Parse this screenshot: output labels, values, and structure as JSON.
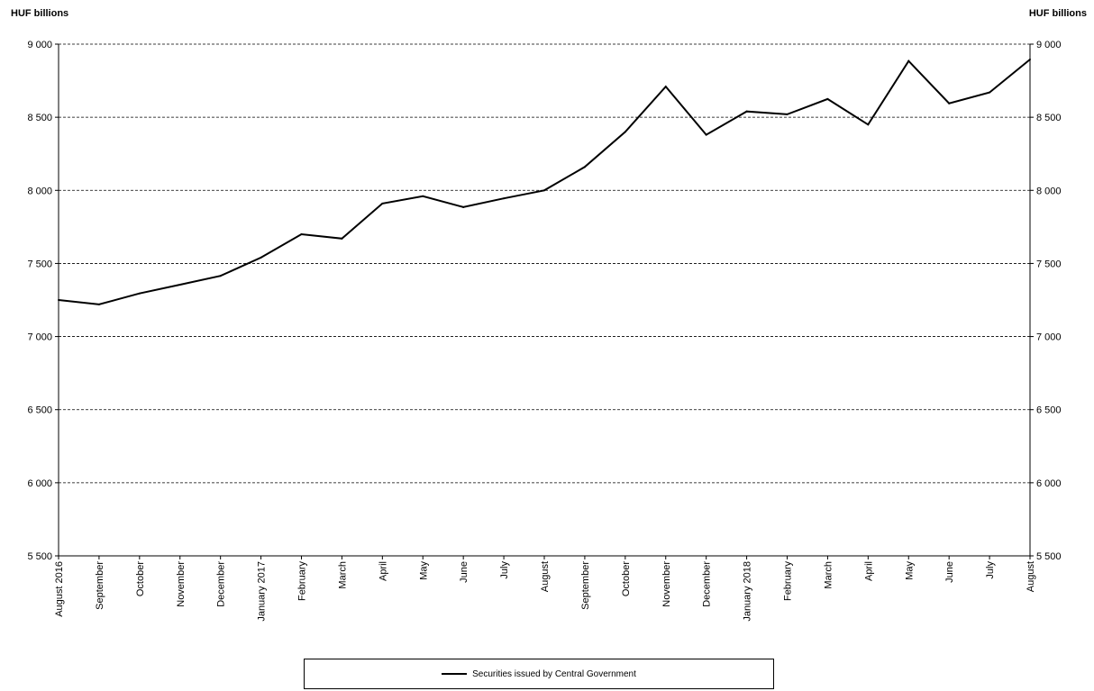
{
  "chart_data": {
    "type": "line",
    "y_unit_left": "HUF billions",
    "y_unit_right": "HUF billions",
    "ylim": [
      5500,
      9000
    ],
    "y_ticks": [
      5500,
      6000,
      6500,
      7000,
      7500,
      8000,
      8500,
      9000
    ],
    "y_tick_labels": [
      "5 500",
      "6 000",
      "6 500",
      "7 000",
      "7 500",
      "8 000",
      "8 500",
      "9 000"
    ],
    "grid": "horizontal dashed",
    "legend_position": "bottom-center",
    "categories": [
      "August 2016",
      "September",
      "October",
      "November",
      "December",
      "January 2017",
      "February",
      "March",
      "April",
      "May",
      "June",
      "July",
      "August",
      "September",
      "October",
      "November",
      "December",
      "January 2018",
      "February",
      "March",
      "April",
      "May",
      "June",
      "July",
      "August"
    ],
    "series": [
      {
        "name": "Securities issued by Central Government",
        "color": "#000000",
        "values": [
          7250,
          7220,
          7295,
          7355,
          7415,
          7540,
          7700,
          7670,
          7910,
          7960,
          7885,
          7945,
          8000,
          8160,
          8400,
          8710,
          8380,
          8540,
          8520,
          8625,
          8450,
          8885,
          8595,
          8670,
          8895
        ]
      }
    ]
  }
}
